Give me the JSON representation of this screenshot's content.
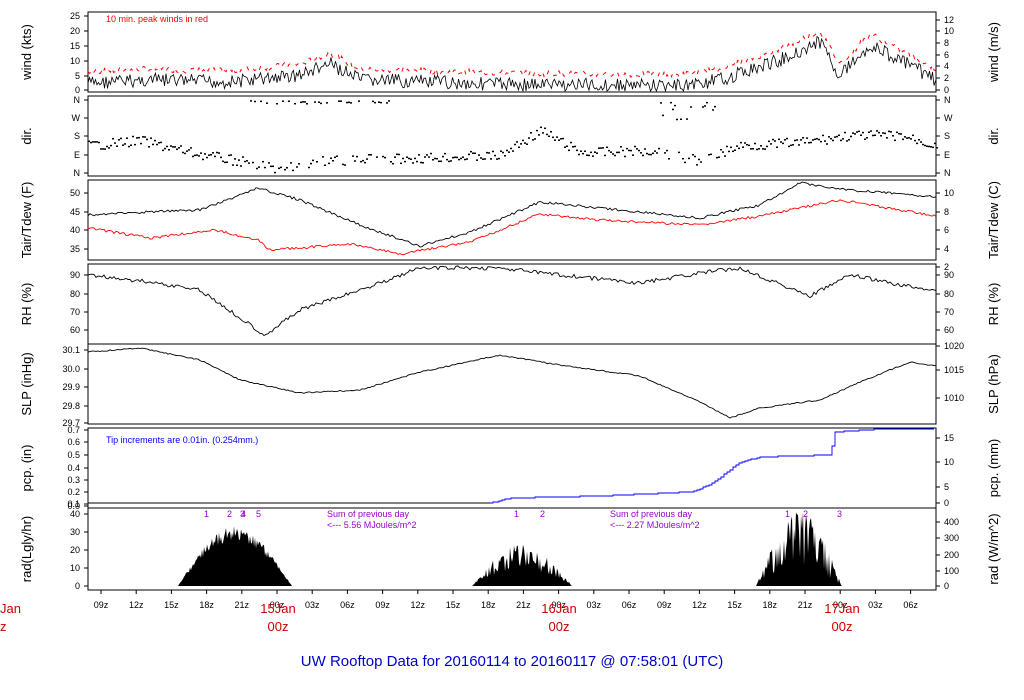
{
  "title": "UW Rooftop Data for 20160114  to  20160117 @ 07:58:01  (UTC)",
  "x_ticks": [
    "09z",
    "12z",
    "15z",
    "18z",
    "21z",
    "00z",
    "03z",
    "06z",
    "09z",
    "12z",
    "15z",
    "18z",
    "21z",
    "00z",
    "03z",
    "06z",
    "09z",
    "12z",
    "15z",
    "18z",
    "21z",
    "00z",
    "03z",
    "06z"
  ],
  "day_labels": [
    {
      "date": "Jan",
      "hour": "z"
    },
    {
      "date": "15Jan",
      "hour": "00z"
    },
    {
      "date": "16Jan",
      "hour": "00z"
    },
    {
      "date": "17Jan",
      "hour": "00z"
    }
  ],
  "colors": {
    "black": "#000000",
    "red": "#ff0000",
    "blue": "#0000ff",
    "purple": "#9900cc",
    "dark_red": "#cc0000",
    "title_blue": "#0000cc"
  },
  "chart_data": [
    {
      "type": "line",
      "name": "wind",
      "ylabel_left": "wind (kts)",
      "ylabel_right": "wind (m/s)",
      "left_ticks": [
        "25",
        "20",
        "15",
        "10",
        "5",
        "0"
      ],
      "right_ticks": [
        "12",
        "10",
        "8",
        "6",
        "4",
        "2",
        "0"
      ],
      "annotation": "10 min. peak winds in red",
      "series": [
        {
          "name": "wind speed",
          "color": "#000000"
        },
        {
          "name": "10 min peak",
          "color": "#ff0000"
        }
      ]
    },
    {
      "type": "scatter",
      "name": "direction",
      "ylabel_left": "dir.",
      "ylabel_right": "dir.",
      "left_ticks": [
        "N",
        "W",
        "S",
        "E",
        "N"
      ],
      "right_ticks": [
        "N",
        "W",
        "S",
        "E",
        "N"
      ]
    },
    {
      "type": "line",
      "name": "temperature",
      "ylabel_left": "Tair/Tdew (F)",
      "ylabel_right": "Tair/Tdew (C)",
      "left_ticks": [
        "50",
        "45",
        "40",
        "35"
      ],
      "right_ticks": [
        "10",
        "8",
        "6",
        "4",
        "2"
      ],
      "series": [
        {
          "name": "Tair",
          "color": "#000000"
        },
        {
          "name": "Tdew",
          "color": "#ff0000"
        }
      ]
    },
    {
      "type": "line",
      "name": "rh",
      "ylabel_left": "RH (%)",
      "ylabel_right": "RH (%)",
      "left_ticks": [
        "90",
        "80",
        "70",
        "60"
      ],
      "right_ticks": [
        "90",
        "80",
        "70",
        "60"
      ]
    },
    {
      "type": "line",
      "name": "slp",
      "ylabel_left": "SLP (inHg)",
      "ylabel_right": "SLP (hPa)",
      "left_ticks": [
        "30.1",
        "30.0",
        "29.9",
        "29.8",
        "29.7"
      ],
      "right_ticks": [
        "1020",
        "1015",
        "1010"
      ]
    },
    {
      "type": "line",
      "name": "precip",
      "ylabel_left": "pcp. (in)",
      "ylabel_right": "pcp. (mm)",
      "left_ticks": [
        "0.7",
        "0.6",
        "0.5",
        "0.4",
        "0.3",
        "0.2",
        "0.1",
        "0.0"
      ],
      "right_ticks": [
        "15",
        "10",
        "5",
        "0"
      ],
      "annotation": "Tip increments are 0.01in. (0.254mm.)"
    },
    {
      "type": "area",
      "name": "radiation",
      "ylabel_left": "rad(Lgly/hr)",
      "ylabel_right": "rad (W/m^2)",
      "left_ticks": [
        "40",
        "30",
        "20",
        "10",
        "0"
      ],
      "right_ticks": [
        "400",
        "300",
        "200",
        "100",
        "0"
      ],
      "hour_marks": [
        "1",
        "2",
        "3",
        "4",
        "5",
        "1",
        "2",
        "1",
        "2",
        "3"
      ],
      "sum_notes": [
        {
          "line1": "Sum of previous day",
          "line2": "<--- 5.56 MJoules/m^2"
        },
        {
          "line1": "Sum of previous day",
          "line2": "<--- 2.27 MJoules/m^2"
        }
      ]
    }
  ]
}
